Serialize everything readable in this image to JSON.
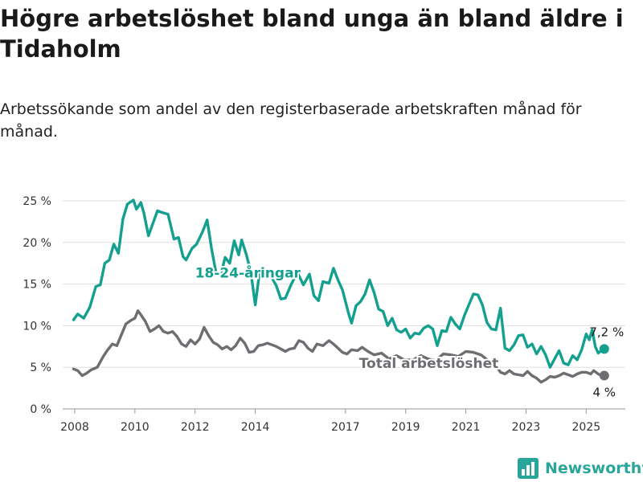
{
  "title": "Högre arbetslöshet bland unga än bland äldre i Tidaholm",
  "subtitle": "Arbetssökande som andel av den registerbaserade arbetskraften månad för månad.",
  "brand": {
    "name": "Newsworthy",
    "icon": "newsworthy-logo-icon",
    "color": "#2aa59a"
  },
  "chart_data": {
    "type": "line",
    "ylim": [
      0,
      25
    ],
    "xlim": [
      2007.6,
      2026.3
    ],
    "grid": true,
    "y_ticks": [
      {
        "value": 0,
        "label": "0 %"
      },
      {
        "value": 5,
        "label": "5 %"
      },
      {
        "value": 10,
        "label": "10 %"
      },
      {
        "value": 15,
        "label": "15 %"
      },
      {
        "value": 20,
        "label": "20 %"
      },
      {
        "value": 25,
        "label": "25 %"
      }
    ],
    "x_ticks": [
      {
        "value": 2008,
        "label": "2008"
      },
      {
        "value": 2010,
        "label": "2010"
      },
      {
        "value": 2012,
        "label": "2012"
      },
      {
        "value": 2014,
        "label": "2014"
      },
      {
        "value": 2017,
        "label": "2017"
      },
      {
        "value": 2019,
        "label": "2019"
      },
      {
        "value": 2021,
        "label": "2021"
      },
      {
        "value": 2023,
        "label": "2023"
      },
      {
        "value": 2025,
        "label": "2025"
      }
    ],
    "series": [
      {
        "name": "18-24-åringar",
        "color": "#14a08f",
        "end_label": "7,2 %",
        "points": [
          [
            2007.96,
            10.7
          ],
          [
            2008.1,
            11.4
          ],
          [
            2008.3,
            10.9
          ],
          [
            2008.5,
            12.2
          ],
          [
            2008.7,
            14.7
          ],
          [
            2008.85,
            14.9
          ],
          [
            2009.0,
            17.5
          ],
          [
            2009.15,
            17.9
          ],
          [
            2009.3,
            19.8
          ],
          [
            2009.45,
            18.7
          ],
          [
            2009.6,
            22.8
          ],
          [
            2009.75,
            24.6
          ],
          [
            2009.95,
            25.1
          ],
          [
            2010.05,
            24.0
          ],
          [
            2010.2,
            24.8
          ],
          [
            2010.3,
            23.5
          ],
          [
            2010.45,
            20.8
          ],
          [
            2010.55,
            21.8
          ],
          [
            2010.75,
            23.8
          ],
          [
            2010.9,
            23.6
          ],
          [
            2011.1,
            23.4
          ],
          [
            2011.3,
            20.4
          ],
          [
            2011.45,
            20.6
          ],
          [
            2011.6,
            18.3
          ],
          [
            2011.7,
            17.9
          ],
          [
            2011.9,
            19.3
          ],
          [
            2012.05,
            19.8
          ],
          [
            2012.25,
            21.3
          ],
          [
            2012.4,
            22.7
          ],
          [
            2012.55,
            19.2
          ],
          [
            2012.7,
            16.3
          ],
          [
            2012.85,
            16.0
          ],
          [
            2013.0,
            18.2
          ],
          [
            2013.15,
            17.5
          ],
          [
            2013.3,
            20.2
          ],
          [
            2013.45,
            18.5
          ],
          [
            2013.55,
            20.3
          ],
          [
            2013.7,
            18.6
          ],
          [
            2013.85,
            16.5
          ],
          [
            2014.0,
            12.5
          ],
          [
            2014.15,
            16.6
          ],
          [
            2014.3,
            16.3
          ],
          [
            2014.5,
            16.1
          ],
          [
            2014.7,
            14.8
          ],
          [
            2014.85,
            13.2
          ],
          [
            2015.0,
            13.3
          ],
          [
            2015.2,
            15.0
          ],
          [
            2015.4,
            16.4
          ],
          [
            2015.6,
            14.9
          ],
          [
            2015.8,
            16.2
          ],
          [
            2015.95,
            13.6
          ],
          [
            2016.1,
            13.0
          ],
          [
            2016.25,
            15.3
          ],
          [
            2016.45,
            15.1
          ],
          [
            2016.6,
            16.9
          ],
          [
            2016.75,
            15.5
          ],
          [
            2016.9,
            14.3
          ],
          [
            2017.1,
            11.5
          ],
          [
            2017.2,
            10.3
          ],
          [
            2017.35,
            12.4
          ],
          [
            2017.5,
            12.9
          ],
          [
            2017.65,
            13.8
          ],
          [
            2017.8,
            15.5
          ],
          [
            2017.95,
            14.0
          ],
          [
            2018.1,
            12.0
          ],
          [
            2018.25,
            11.7
          ],
          [
            2018.4,
            10.0
          ],
          [
            2018.55,
            10.9
          ],
          [
            2018.7,
            9.5
          ],
          [
            2018.85,
            9.2
          ],
          [
            2019.0,
            9.6
          ],
          [
            2019.15,
            8.5
          ],
          [
            2019.3,
            9.1
          ],
          [
            2019.45,
            9.0
          ],
          [
            2019.6,
            9.7
          ],
          [
            2019.75,
            10.0
          ],
          [
            2019.9,
            9.6
          ],
          [
            2020.05,
            7.6
          ],
          [
            2020.2,
            9.4
          ],
          [
            2020.35,
            9.3
          ],
          [
            2020.5,
            11.0
          ],
          [
            2020.65,
            10.2
          ],
          [
            2020.8,
            9.6
          ],
          [
            2020.95,
            11.2
          ],
          [
            2021.1,
            12.5
          ],
          [
            2021.25,
            13.8
          ],
          [
            2021.4,
            13.7
          ],
          [
            2021.55,
            12.5
          ],
          [
            2021.7,
            10.4
          ],
          [
            2021.85,
            9.6
          ],
          [
            2022.0,
            9.5
          ],
          [
            2022.15,
            12.1
          ],
          [
            2022.3,
            7.3
          ],
          [
            2022.45,
            7.0
          ],
          [
            2022.6,
            7.7
          ],
          [
            2022.75,
            8.8
          ],
          [
            2022.9,
            8.9
          ],
          [
            2023.05,
            7.4
          ],
          [
            2023.2,
            7.8
          ],
          [
            2023.35,
            6.6
          ],
          [
            2023.5,
            7.5
          ],
          [
            2023.65,
            6.5
          ],
          [
            2023.8,
            5.0
          ],
          [
            2023.95,
            6.0
          ],
          [
            2024.1,
            7.0
          ],
          [
            2024.25,
            5.5
          ],
          [
            2024.4,
            5.3
          ],
          [
            2024.55,
            6.4
          ],
          [
            2024.7,
            5.9
          ],
          [
            2024.85,
            7.1
          ],
          [
            2025.0,
            9.0
          ],
          [
            2025.1,
            8.3
          ],
          [
            2025.2,
            9.5
          ],
          [
            2025.3,
            7.5
          ],
          [
            2025.4,
            6.7
          ],
          [
            2025.5,
            7.0
          ],
          [
            2025.6,
            7.2
          ]
        ]
      },
      {
        "name": "Total arbetslöshet",
        "color": "#6e6e72",
        "end_label": "4 %",
        "points": [
          [
            2007.96,
            4.8
          ],
          [
            2008.1,
            4.6
          ],
          [
            2008.25,
            4.0
          ],
          [
            2008.4,
            4.3
          ],
          [
            2008.55,
            4.7
          ],
          [
            2008.75,
            5.0
          ],
          [
            2008.95,
            6.3
          ],
          [
            2009.1,
            7.1
          ],
          [
            2009.25,
            7.8
          ],
          [
            2009.4,
            7.6
          ],
          [
            2009.55,
            8.9
          ],
          [
            2009.7,
            10.2
          ],
          [
            2009.85,
            10.6
          ],
          [
            2010.0,
            10.9
          ],
          [
            2010.1,
            11.8
          ],
          [
            2010.2,
            11.3
          ],
          [
            2010.35,
            10.5
          ],
          [
            2010.5,
            9.3
          ],
          [
            2010.65,
            9.6
          ],
          [
            2010.8,
            10.0
          ],
          [
            2010.95,
            9.3
          ],
          [
            2011.1,
            9.1
          ],
          [
            2011.25,
            9.3
          ],
          [
            2011.4,
            8.7
          ],
          [
            2011.55,
            7.8
          ],
          [
            2011.7,
            7.5
          ],
          [
            2011.85,
            8.3
          ],
          [
            2012.0,
            7.8
          ],
          [
            2012.15,
            8.4
          ],
          [
            2012.3,
            9.8
          ],
          [
            2012.45,
            8.8
          ],
          [
            2012.6,
            8.0
          ],
          [
            2012.75,
            7.7
          ],
          [
            2012.9,
            7.2
          ],
          [
            2013.05,
            7.5
          ],
          [
            2013.2,
            7.1
          ],
          [
            2013.35,
            7.6
          ],
          [
            2013.5,
            8.5
          ],
          [
            2013.65,
            7.9
          ],
          [
            2013.8,
            6.8
          ],
          [
            2013.95,
            6.9
          ],
          [
            2014.1,
            7.6
          ],
          [
            2014.25,
            7.7
          ],
          [
            2014.4,
            7.9
          ],
          [
            2014.55,
            7.7
          ],
          [
            2014.7,
            7.5
          ],
          [
            2014.85,
            7.2
          ],
          [
            2015.0,
            6.9
          ],
          [
            2015.15,
            7.2
          ],
          [
            2015.3,
            7.3
          ],
          [
            2015.45,
            8.2
          ],
          [
            2015.6,
            8.0
          ],
          [
            2015.75,
            7.3
          ],
          [
            2015.9,
            6.9
          ],
          [
            2016.05,
            7.8
          ],
          [
            2016.25,
            7.6
          ],
          [
            2016.45,
            8.2
          ],
          [
            2016.6,
            7.8
          ],
          [
            2016.75,
            7.3
          ],
          [
            2016.9,
            6.8
          ],
          [
            2017.05,
            6.6
          ],
          [
            2017.2,
            7.1
          ],
          [
            2017.4,
            7.0
          ],
          [
            2017.55,
            7.4
          ],
          [
            2017.75,
            6.9
          ],
          [
            2017.95,
            6.5
          ],
          [
            2018.2,
            6.7
          ],
          [
            2018.45,
            6.0
          ],
          [
            2018.7,
            6.4
          ],
          [
            2018.95,
            5.9
          ],
          [
            2019.25,
            5.9
          ],
          [
            2019.5,
            6.4
          ],
          [
            2019.75,
            6.0
          ],
          [
            2020.0,
            5.8
          ],
          [
            2020.25,
            6.6
          ],
          [
            2020.5,
            6.5
          ],
          [
            2020.75,
            6.3
          ],
          [
            2021.0,
            6.9
          ],
          [
            2021.25,
            6.8
          ],
          [
            2021.5,
            6.5
          ],
          [
            2021.75,
            5.8
          ],
          [
            2022.0,
            5.2
          ],
          [
            2022.15,
            4.4
          ],
          [
            2022.3,
            4.2
          ],
          [
            2022.45,
            4.6
          ],
          [
            2022.6,
            4.2
          ],
          [
            2022.75,
            4.1
          ],
          [
            2022.9,
            4.0
          ],
          [
            2023.05,
            4.5
          ],
          [
            2023.2,
            4.0
          ],
          [
            2023.35,
            3.7
          ],
          [
            2023.5,
            3.2
          ],
          [
            2023.65,
            3.5
          ],
          [
            2023.8,
            3.9
          ],
          [
            2023.95,
            3.8
          ],
          [
            2024.1,
            4.0
          ],
          [
            2024.25,
            4.3
          ],
          [
            2024.4,
            4.1
          ],
          [
            2024.55,
            3.9
          ],
          [
            2024.7,
            4.2
          ],
          [
            2024.85,
            4.4
          ],
          [
            2025.0,
            4.4
          ],
          [
            2025.15,
            4.2
          ],
          [
            2025.25,
            4.6
          ],
          [
            2025.4,
            4.2
          ],
          [
            2025.5,
            4.0
          ],
          [
            2025.6,
            4.0
          ]
        ]
      }
    ]
  }
}
